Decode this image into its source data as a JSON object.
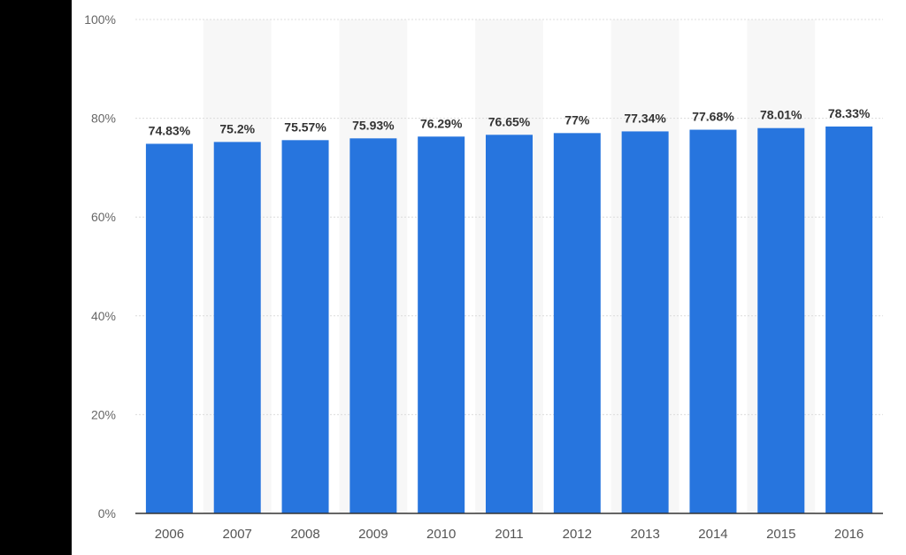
{
  "chart_data": {
    "type": "bar",
    "categories": [
      "2006",
      "2007",
      "2008",
      "2009",
      "2010",
      "2011",
      "2012",
      "2013",
      "2014",
      "2015",
      "2016"
    ],
    "values": [
      74.83,
      75.2,
      75.57,
      75.93,
      76.29,
      76.65,
      77,
      77.34,
      77.68,
      78.01,
      78.33
    ],
    "data_labels": [
      "74.83%",
      "75.2%",
      "75.57%",
      "75.93%",
      "76.29%",
      "76.65%",
      "77%",
      "77.34%",
      "77.68%",
      "78.01%",
      "78.33%"
    ],
    "yticks": [
      0,
      20,
      40,
      60,
      80,
      100
    ],
    "ytick_labels": [
      "0%",
      "20%",
      "40%",
      "60%",
      "80%",
      "100%"
    ],
    "ylim": [
      0,
      100
    ],
    "title": "",
    "xlabel": "",
    "ylabel": "",
    "grid": true,
    "colors": {
      "bar": "#2775de",
      "band": "#f7f7f7"
    }
  }
}
